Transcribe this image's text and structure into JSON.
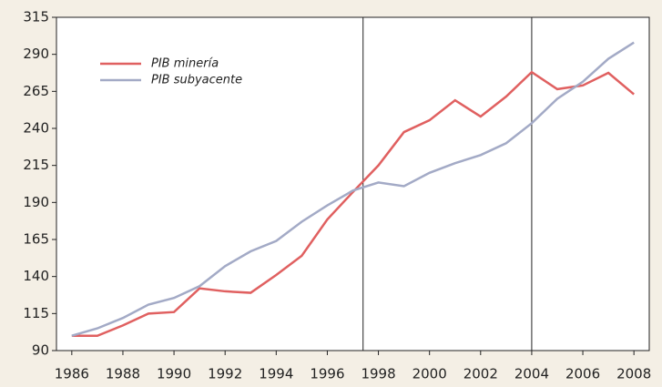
{
  "chart_data": {
    "type": "line",
    "x": [
      1986,
      1987,
      1988,
      1989,
      1990,
      1991,
      1992,
      1993,
      1994,
      1995,
      1996,
      1997,
      1998,
      1999,
      2000,
      2001,
      2002,
      2003,
      2004,
      2005,
      2006,
      2007,
      2008
    ],
    "series": [
      {
        "name": "PIB minería",
        "color": "#e06060",
        "values": [
          100,
          100,
          107,
          115,
          116,
          132,
          130,
          129,
          141,
          154,
          178.5,
          197,
          215,
          237.5,
          245.5,
          259,
          248,
          261.5,
          278,
          266.5,
          269,
          277.5,
          263
        ]
      },
      {
        "name": "PIB subyacente",
        "color": "#a3aac6",
        "values": [
          100,
          105,
          112,
          121,
          125.5,
          133.5,
          147,
          157,
          164,
          177,
          188,
          198,
          203.5,
          201,
          210,
          216.5,
          222,
          230,
          243.5,
          260,
          271.5,
          287,
          298
        ]
      }
    ],
    "vlines": [
      1997.4,
      2004
    ],
    "xlim": [
      1985.4,
      2008.6
    ],
    "xticks": [
      1986,
      1988,
      1990,
      1992,
      1994,
      1996,
      1998,
      2000,
      2002,
      2004,
      2006,
      2008
    ],
    "ylim": [
      90,
      315
    ],
    "yticks": [
      90,
      115,
      140,
      165,
      190,
      215,
      240,
      265,
      290,
      315
    ],
    "legend": "upper left"
  }
}
